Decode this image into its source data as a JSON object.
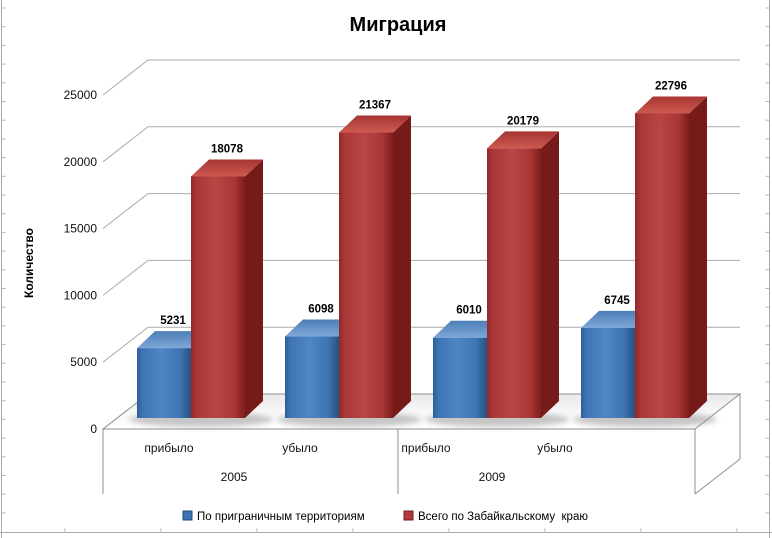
{
  "title": "Миграция",
  "chart_data": {
    "type": "bar",
    "effect": "3d-clustered-column",
    "title": "Миграция",
    "xlabel": "",
    "ylabel": "Количество",
    "ylim": [
      0,
      25000
    ],
    "yticks": [
      0,
      5000,
      10000,
      15000,
      20000,
      25000
    ],
    "grid": true,
    "data_labels": true,
    "legend_position": "bottom",
    "groups": [
      {
        "label": "2005",
        "categories": [
          "прибыло",
          "убыло"
        ]
      },
      {
        "label": "2009",
        "categories": [
          "прибыло",
          "убыло"
        ]
      }
    ],
    "categories": [
      "прибыло",
      "убыло",
      "прибыло",
      "убыло"
    ],
    "series": [
      {
        "name": "По приграничным территориям",
        "key": "border-territories",
        "values": [
          5231,
          6098,
          6010,
          6745
        ],
        "color": "#3E74B4",
        "colors": {
          "edge": "#2D5F99",
          "front": "#3E74B4",
          "front_light": "#4E86C6",
          "front_dark": "#26527E",
          "top": "#4C7EB7",
          "top_light": "#7FA8D9",
          "side": "#1F4B7C"
        }
      },
      {
        "name": "Всего по Забайкальскому  краю",
        "key": "zabaykalsky-total",
        "values": [
          18078,
          21367,
          20179,
          22796
        ],
        "color": "#B23B3A",
        "colors": {
          "edge": "#93282A",
          "front": "#A93736",
          "front_light": "#B94544",
          "front_dark": "#7D1E1D",
          "top": "#A63531",
          "top_light": "#CE5951",
          "side": "#771B1A"
        }
      }
    ],
    "category_slot_keys": [
      "2005-arrived",
      "2005-departed",
      "2009-arrived",
      "2009-departed"
    ]
  }
}
